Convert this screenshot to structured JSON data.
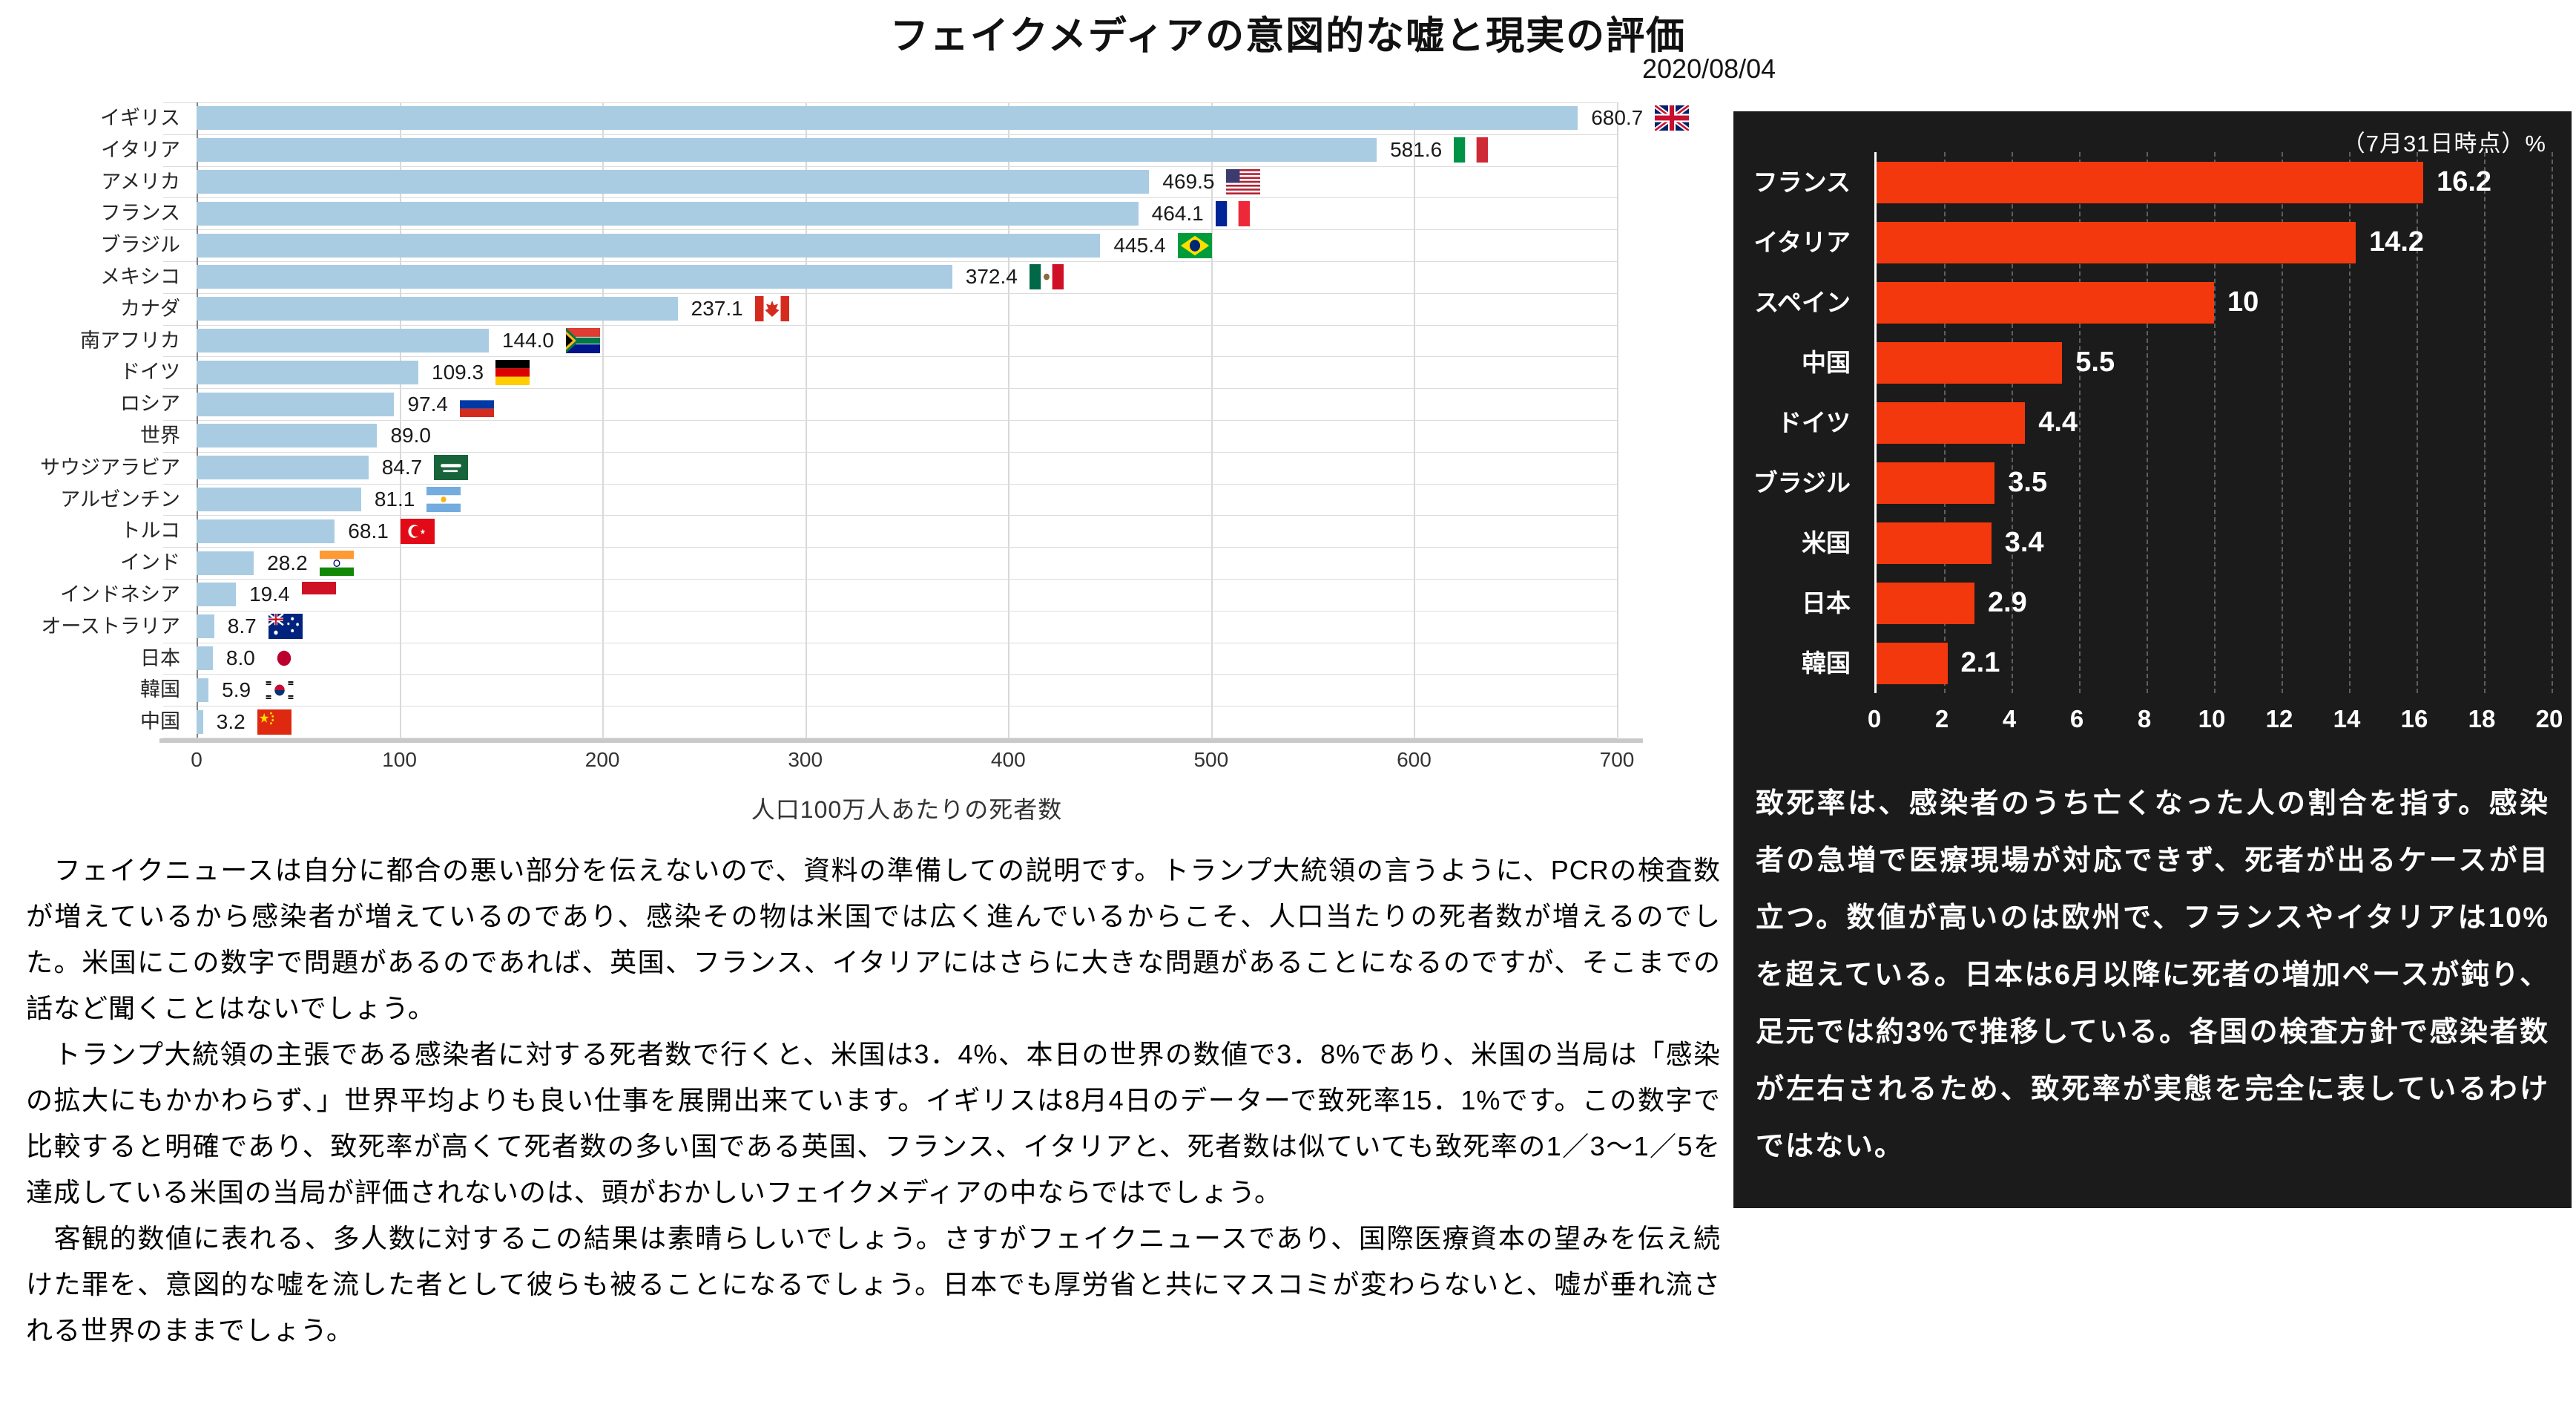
{
  "page": {
    "title": "フェイクメディアの意図的な嘘と現実の評価",
    "date": "2020/08/04"
  },
  "chart_data": [
    {
      "type": "bar",
      "orientation": "horizontal",
      "title": "",
      "xlabel": "人口100万人あたりの死者数",
      "xlim": [
        0,
        700
      ],
      "xticks": [
        0,
        100,
        200,
        300,
        400,
        500,
        600,
        700
      ],
      "grid": true,
      "bar_color": "#a9cce3",
      "rows": [
        {
          "label": "イギリス",
          "value": 680.7,
          "display": "680.7",
          "flag": "uk"
        },
        {
          "label": "イタリア",
          "value": 581.6,
          "display": "581.6",
          "flag": "italy"
        },
        {
          "label": "アメリカ",
          "value": 469.5,
          "display": "469.5",
          "flag": "usa"
        },
        {
          "label": "フランス",
          "value": 464.1,
          "display": "464.1",
          "flag": "france"
        },
        {
          "label": "ブラジル",
          "value": 445.4,
          "display": "445.4",
          "flag": "brazil"
        },
        {
          "label": "メキシコ",
          "value": 372.4,
          "display": "372.4",
          "flag": "mexico"
        },
        {
          "label": "カナダ",
          "value": 237.1,
          "display": "237.1",
          "flag": "canada"
        },
        {
          "label": "南アフリカ",
          "value": 144.0,
          "display": "144.0",
          "flag": "south-africa"
        },
        {
          "label": "ドイツ",
          "value": 109.3,
          "display": "109.3",
          "flag": "germany"
        },
        {
          "label": "ロシア",
          "value": 97.4,
          "display": "97.4",
          "flag": "russia"
        },
        {
          "label": "世界",
          "value": 89.0,
          "display": "89.0",
          "flag": null
        },
        {
          "label": "サウジアラビア",
          "value": 84.7,
          "display": "84.7",
          "flag": "saudi-arabia"
        },
        {
          "label": "アルゼンチン",
          "value": 81.1,
          "display": "81.1",
          "flag": "argentina"
        },
        {
          "label": "トルコ",
          "value": 68.1,
          "display": "68.1",
          "flag": "turkey"
        },
        {
          "label": "インド",
          "value": 28.2,
          "display": "28.2",
          "flag": "india"
        },
        {
          "label": "インドネシア",
          "value": 19.4,
          "display": "19.4",
          "flag": "indonesia"
        },
        {
          "label": "オーストラリア",
          "value": 8.7,
          "display": "8.7",
          "flag": "australia"
        },
        {
          "label": "日本",
          "value": 8.0,
          "display": "8.0",
          "flag": "japan"
        },
        {
          "label": "韓国",
          "value": 5.9,
          "display": "5.9",
          "flag": "south-korea"
        },
        {
          "label": "中国",
          "value": 3.2,
          "display": "3.2",
          "flag": "china"
        }
      ]
    },
    {
      "type": "bar",
      "orientation": "horizontal",
      "note": "（7月31日時点）%",
      "xlim": [
        0,
        20
      ],
      "xticks": [
        0,
        2,
        4,
        6,
        8,
        10,
        12,
        14,
        16,
        18,
        20
      ],
      "grid": true,
      "background": "#1b1b1b",
      "bar_color": "#f4380d",
      "rows": [
        {
          "label": "フランス",
          "value": 16.2,
          "display": "16.2"
        },
        {
          "label": "イタリア",
          "value": 14.2,
          "display": "14.2"
        },
        {
          "label": "スペイン",
          "value": 10,
          "display": "10"
        },
        {
          "label": "中国",
          "value": 5.5,
          "display": "5.5"
        },
        {
          "label": "ドイツ",
          "value": 4.4,
          "display": "4.4"
        },
        {
          "label": "ブラジル",
          "value": 3.5,
          "display": "3.5"
        },
        {
          "label": "米国",
          "value": 3.4,
          "display": "3.4"
        },
        {
          "label": "日本",
          "value": 2.9,
          "display": "2.9"
        },
        {
          "label": "韓国",
          "value": 2.1,
          "display": "2.1"
        }
      ],
      "caption": "致死率は、感染者のうち亡くなった人の割合を指す。感染者の急増で医療現場が対応できず、死者が出るケースが目立つ。数値が高いのは欧州で、フランスやイタリアは10%を超えている。日本は6月以降に死者の増加ペースが鈍り、足元では約3%で推移している。各国の検査方針で感染者数が左右されるため、致死率が実態を完全に表しているわけではない。"
    }
  ],
  "body": {
    "paragraphs": [
      "　フェイクニュースは自分に都合の悪い部分を伝えないので、資料の準備しての説明です。トランプ大統領の言うように、PCRの検査数が増えているから感染者が増えているのであり、感染その物は米国では広く進んでいるからこそ、人口当たりの死者数が増えるのでした。米国にこの数字で問題があるのであれば、英国、フランス、イタリアにはさらに大きな問題があることになるのですが、そこまでの話など聞くことはないでしょう。",
      "　トランプ大統領の主張である感染者に対する死者数で行くと、米国は3．4%、本日の世界の数値で3．8%であり、米国の当局は「感染の拡大にもかかわらず、」世界平均よりも良い仕事を展開出来ています。イギリスは8月4日のデーターで致死率15．1%です。この数字で比較すると明確であり、致死率が高くて死者数の多い国である英国、フランス、イタリアと、死者数は似ていても致死率の1／3～1／5を達成している米国の当局が評価されないのは、頭がおかしいフェイクメディアの中ならではでしょう。",
      "　客観的数値に表れる、多人数に対するこの結果は素晴らしいでしょう。さすがフェイクニュースであり、国際医療資本の望みを伝え続けた罪を、意図的な嘘を流した者として彼らも被ることになるでしょう。日本でも厚労省と共にマスコミが変わらないと、嘘が垂れ流される世界のままでしょう。"
    ]
  }
}
